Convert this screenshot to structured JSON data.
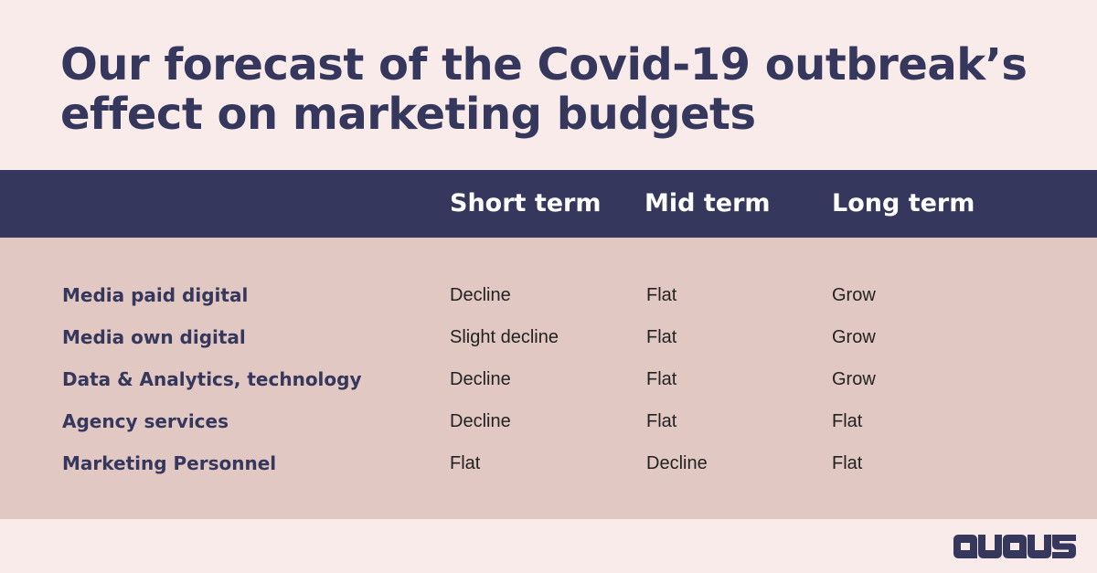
{
  "title": "Our forecast of the Covid-19 outbreak’s effect on marketing budgets",
  "table": {
    "columns": [
      "Short term",
      "Mid term",
      "Long term"
    ],
    "rows": [
      {
        "label": "Media paid digital",
        "values": [
          "Decline",
          "Flat",
          "Grow"
        ]
      },
      {
        "label": "Media own digital",
        "values": [
          "Slight decline",
          "Flat",
          "Grow"
        ]
      },
      {
        "label": "Data & Analytics, technology",
        "values": [
          "Decline",
          "Flat",
          "Grow"
        ]
      },
      {
        "label": "Agency services",
        "values": [
          "Decline",
          "Flat",
          "Flat"
        ]
      },
      {
        "label": "Marketing Personnel",
        "values": [
          "Flat",
          "Decline",
          "Flat"
        ]
      }
    ]
  },
  "logo": {
    "text": "avaus"
  },
  "colors": {
    "background": "#f8ebea",
    "header_band": "#36375c",
    "body_band": "#e2c8c3",
    "heading_text": "#36375c",
    "cell_text": "#222222"
  }
}
